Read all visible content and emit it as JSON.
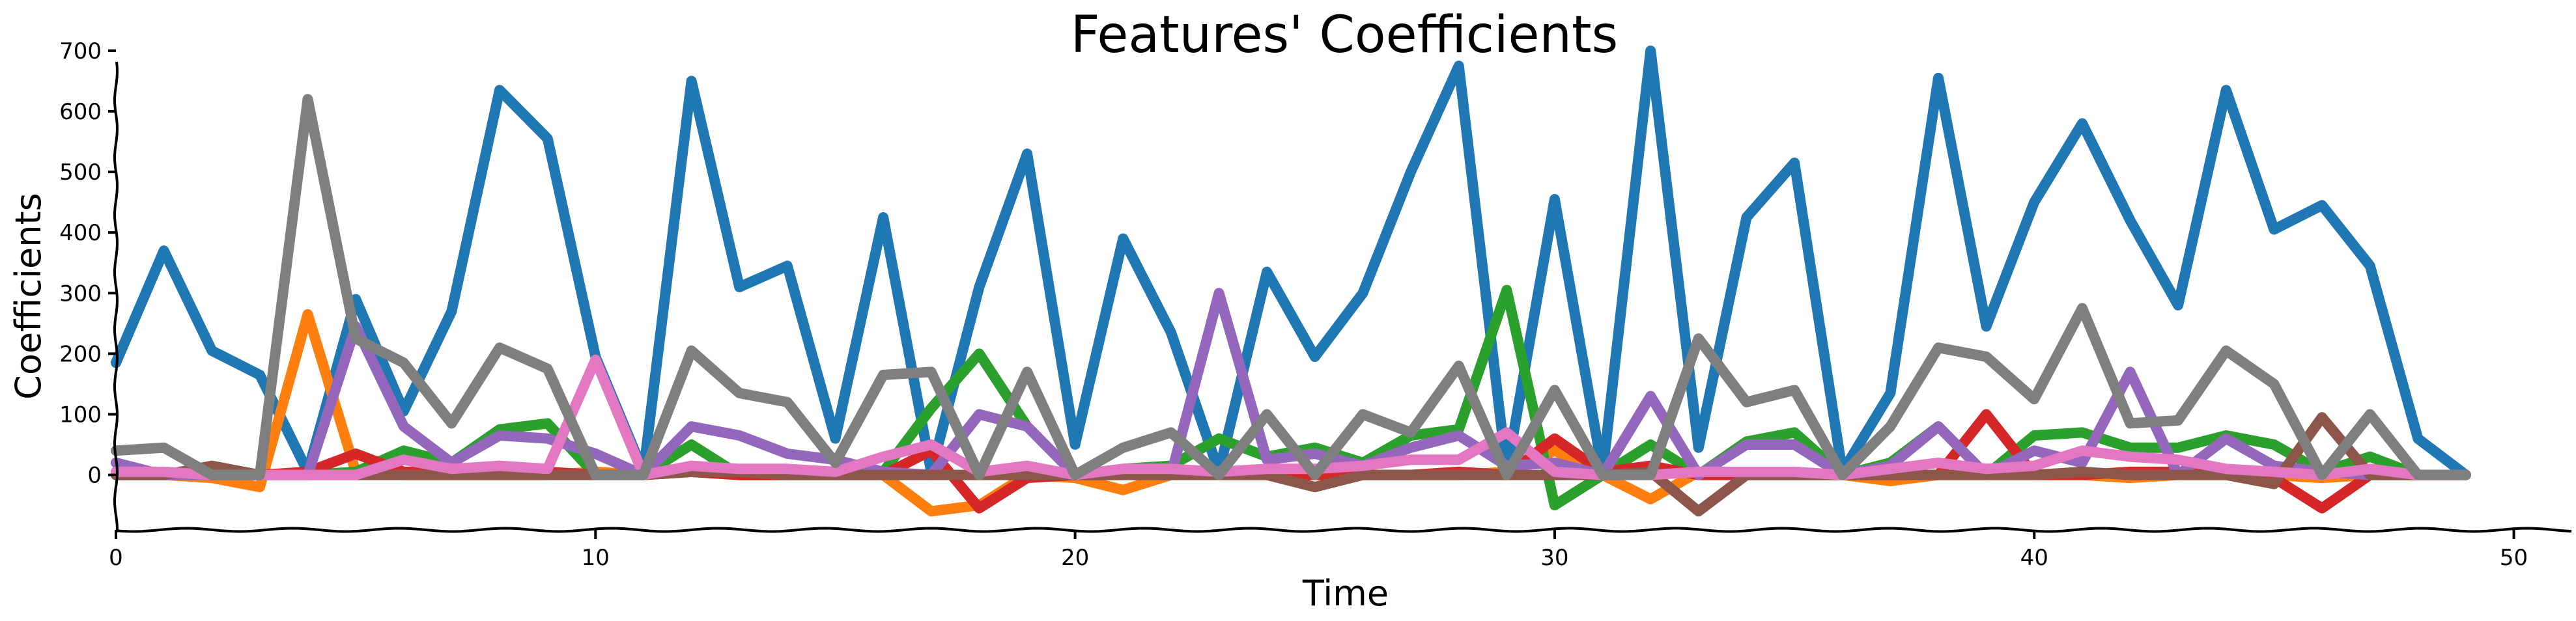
{
  "chart_data": {
    "type": "line",
    "title": "Features' Coefficients",
    "xlabel": "Time",
    "ylabel": "Coefficients",
    "xlim": [
      0,
      51.5
    ],
    "ylim": [
      -95,
      745
    ],
    "xticks": [
      0,
      10,
      20,
      30,
      40,
      50
    ],
    "yticks": [
      0,
      100,
      200,
      300,
      400,
      500,
      600,
      700
    ],
    "grid": false,
    "legend": "none",
    "x": [
      0,
      1,
      2,
      3,
      4,
      5,
      6,
      7,
      8,
      9,
      10,
      11,
      12,
      13,
      14,
      15,
      16,
      17,
      18,
      19,
      20,
      21,
      22,
      23,
      24,
      25,
      26,
      27,
      28,
      29,
      30,
      31,
      32,
      33,
      34,
      35,
      36,
      37,
      38,
      39,
      40,
      41,
      42,
      43,
      44,
      45,
      46,
      47,
      48,
      49
    ],
    "series": [
      {
        "color": "#1f77b4",
        "values": [
          185,
          370,
          205,
          165,
          5,
          290,
          105,
          270,
          635,
          555,
          195,
          5,
          650,
          310,
          345,
          60,
          425,
          5,
          310,
          530,
          50,
          390,
          235,
          5,
          335,
          195,
          300,
          500,
          675,
          5,
          455,
          5,
          700,
          45,
          425,
          515,
          5,
          135,
          655,
          245,
          450,
          580,
          420,
          280,
          635,
          405,
          445,
          345,
          60,
          0
        ]
      },
      {
        "color": "#ff7f0e",
        "values": [
          5,
          0,
          -5,
          -20,
          265,
          5,
          0,
          0,
          0,
          0,
          5,
          0,
          5,
          0,
          0,
          0,
          0,
          -60,
          -50,
          0,
          -5,
          -25,
          0,
          5,
          0,
          0,
          0,
          0,
          0,
          5,
          40,
          0,
          -40,
          5,
          0,
          0,
          0,
          -10,
          0,
          0,
          0,
          0,
          -5,
          0,
          0,
          0,
          -5,
          0,
          0,
          0
        ]
      },
      {
        "color": "#2ca02c",
        "values": [
          0,
          0,
          0,
          0,
          0,
          5,
          40,
          20,
          75,
          85,
          0,
          0,
          50,
          0,
          0,
          0,
          5,
          110,
          200,
          80,
          0,
          10,
          15,
          60,
          30,
          45,
          20,
          65,
          75,
          305,
          -50,
          0,
          50,
          0,
          55,
          70,
          0,
          20,
          80,
          0,
          65,
          70,
          45,
          45,
          65,
          50,
          5,
          30,
          0,
          0
        ]
      },
      {
        "color": "#d62728",
        "values": [
          0,
          0,
          5,
          0,
          5,
          35,
          5,
          5,
          5,
          5,
          0,
          0,
          5,
          0,
          0,
          0,
          0,
          40,
          -55,
          -5,
          0,
          0,
          5,
          0,
          0,
          0,
          0,
          0,
          5,
          0,
          60,
          5,
          15,
          0,
          0,
          0,
          0,
          0,
          0,
          100,
          0,
          0,
          5,
          5,
          0,
          -5,
          -55,
          0,
          0,
          0
        ]
      },
      {
        "color": "#9467bd",
        "values": [
          20,
          0,
          0,
          0,
          0,
          245,
          80,
          20,
          65,
          60,
          35,
          0,
          80,
          65,
          35,
          25,
          5,
          0,
          100,
          80,
          0,
          0,
          0,
          300,
          25,
          35,
          15,
          45,
          65,
          15,
          20,
          0,
          130,
          0,
          50,
          50,
          0,
          15,
          80,
          0,
          40,
          20,
          170,
          0,
          60,
          15,
          5,
          0,
          0,
          0
        ]
      },
      {
        "color": "#8c564b",
        "values": [
          0,
          0,
          15,
          0,
          0,
          0,
          0,
          0,
          0,
          0,
          0,
          0,
          5,
          5,
          0,
          0,
          0,
          0,
          0,
          0,
          0,
          0,
          0,
          0,
          0,
          -20,
          0,
          0,
          0,
          0,
          0,
          0,
          5,
          -60,
          0,
          0,
          0,
          0,
          0,
          0,
          0,
          5,
          0,
          0,
          0,
          -15,
          95,
          0,
          0,
          0
        ]
      },
      {
        "color": "#e377c2",
        "values": [
          5,
          5,
          0,
          0,
          0,
          0,
          25,
          10,
          15,
          10,
          190,
          0,
          15,
          10,
          10,
          5,
          30,
          50,
          5,
          15,
          0,
          10,
          10,
          5,
          10,
          10,
          15,
          25,
          25,
          70,
          5,
          0,
          0,
          5,
          5,
          5,
          0,
          10,
          20,
          10,
          15,
          40,
          30,
          25,
          10,
          5,
          0,
          10,
          0,
          0
        ]
      },
      {
        "color": "#7f7f7f",
        "values": [
          40,
          45,
          0,
          0,
          620,
          225,
          185,
          85,
          210,
          175,
          0,
          0,
          205,
          135,
          120,
          20,
          165,
          170,
          0,
          170,
          0,
          45,
          70,
          0,
          100,
          0,
          100,
          70,
          180,
          0,
          140,
          0,
          0,
          225,
          120,
          140,
          0,
          80,
          210,
          195,
          125,
          275,
          85,
          90,
          205,
          150,
          0,
          100,
          0,
          0
        ]
      }
    ]
  }
}
